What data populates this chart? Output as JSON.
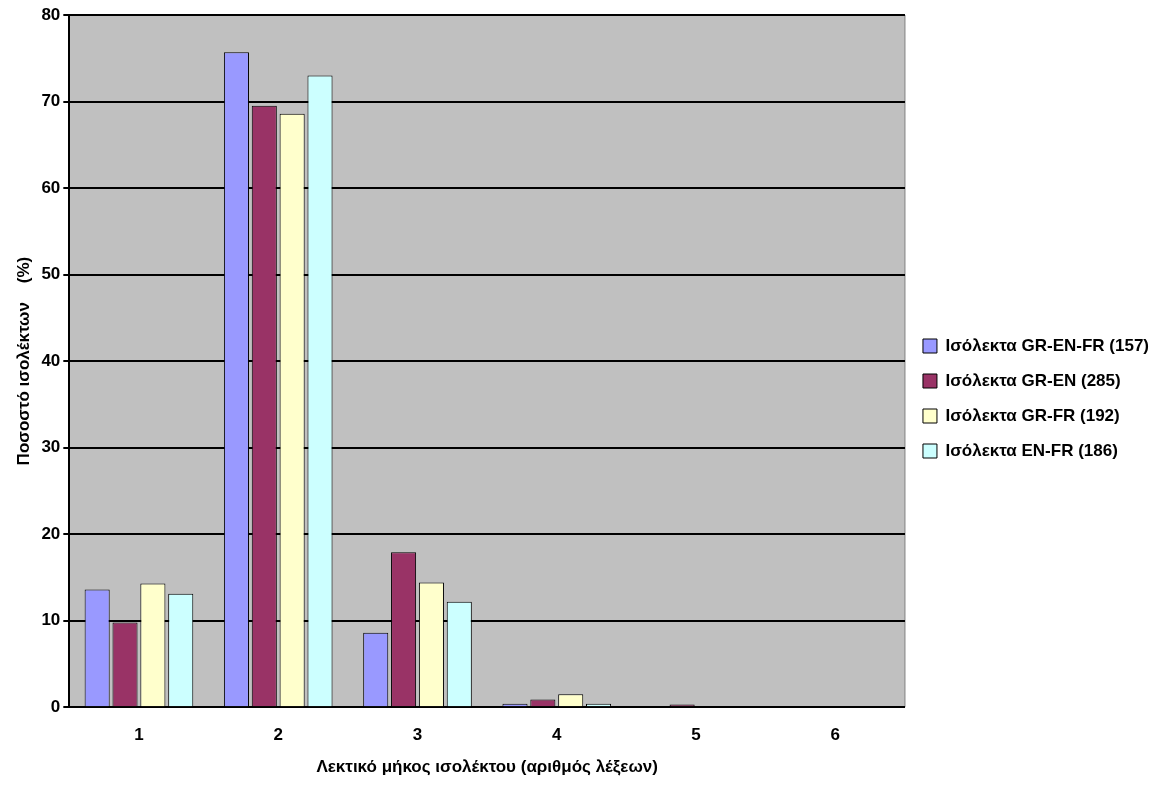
{
  "chart_data": {
    "type": "bar",
    "xlabel": "Λεκτικό μήκος ισολέκτου (αριθμός λέξεων)",
    "ylabel": "Ποσοστό ισολέκτων    (%)",
    "categories": [
      "1",
      "2",
      "3",
      "4",
      "5",
      "6"
    ],
    "series": [
      {
        "name": "Ισόλεκτα GR-EN-FR (157)",
        "color": "#9999ff",
        "values": [
          13.6,
          75.7,
          8.6,
          0.4,
          0,
          0
        ]
      },
      {
        "name": "Ισόλεκτα GR-EN (285)",
        "color": "#993366",
        "values": [
          9.8,
          69.5,
          17.9,
          0.9,
          0.3,
          0
        ]
      },
      {
        "name": "Ισόλεκτα GR-FR (192)",
        "color": "#ffffcc",
        "values": [
          14.3,
          68.6,
          14.4,
          1.5,
          0,
          0
        ]
      },
      {
        "name": "Ισόλεκτα EN-FR (186)",
        "color": "#ccffff",
        "values": [
          13.1,
          73.0,
          12.2,
          0.4,
          0,
          0
        ]
      }
    ],
    "ylim": [
      0,
      80
    ],
    "yticks": [
      0,
      10,
      20,
      30,
      40,
      50,
      60,
      70,
      80
    ],
    "grid": "y",
    "legend": "right"
  }
}
